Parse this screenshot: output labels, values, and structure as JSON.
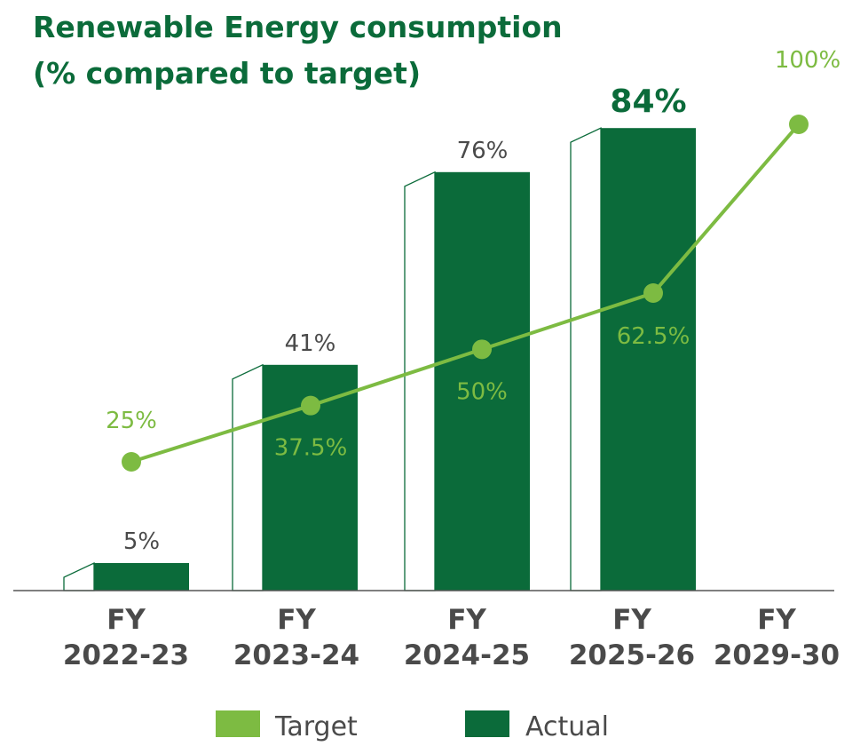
{
  "chart_data": {
    "type": "bar",
    "title_lines": [
      "Renewable Energy consumption",
      "(% compared to target)"
    ],
    "categories": [
      {
        "line1": "FY",
        "line2": "2022-23"
      },
      {
        "line1": "FY",
        "line2": "2023-24"
      },
      {
        "line1": "FY",
        "line2": "2024-25"
      },
      {
        "line1": "FY",
        "line2": "2025-26"
      },
      {
        "line1": "FY",
        "line2": "2029-30"
      }
    ],
    "series": [
      {
        "name": "Actual",
        "kind": "bar",
        "color": "#0b6b3a",
        "values": [
          5,
          41,
          76,
          84,
          null
        ],
        "labels": [
          "5%",
          "41%",
          "76%",
          "84%",
          ""
        ]
      },
      {
        "name": "Target",
        "kind": "line",
        "color": "#7dbb42",
        "values": [
          25,
          37.5,
          50,
          62.5,
          100
        ],
        "labels": [
          "25%",
          "37.5%",
          "50%",
          "62.5%",
          "100%"
        ]
      }
    ],
    "ylim": [
      0,
      100
    ],
    "grid": false,
    "legend": "bottom-center"
  }
}
